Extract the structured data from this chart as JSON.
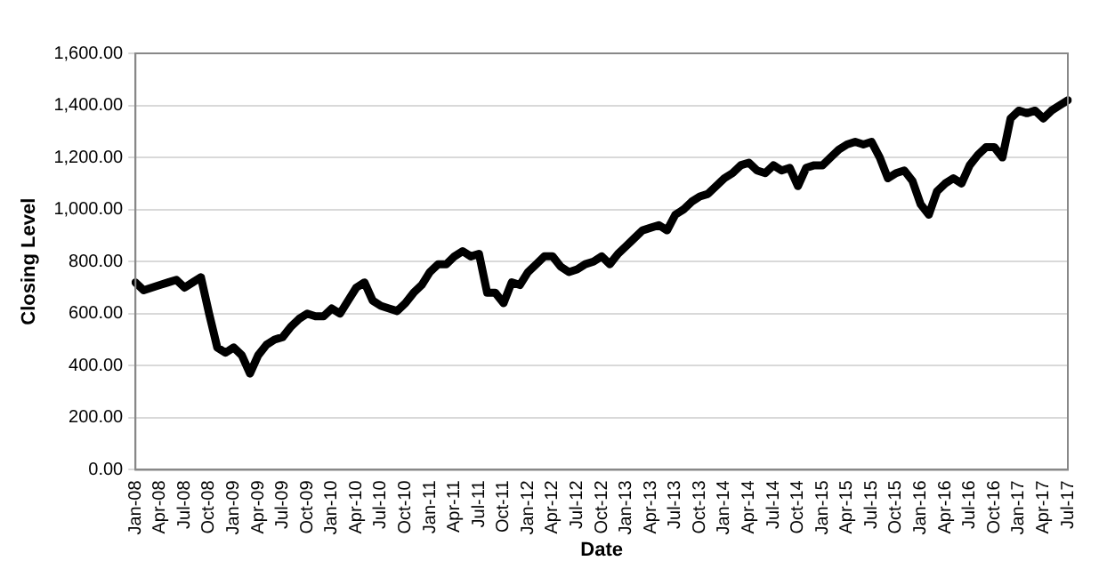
{
  "chart_data": {
    "type": "line",
    "xlabel": "Date",
    "ylabel": "Closing Level",
    "categories": [
      "Jan-08",
      null,
      null,
      "Apr-08",
      null,
      null,
      "Jul-08",
      null,
      null,
      "Oct-08",
      null,
      null,
      "Jan-09",
      null,
      null,
      "Apr-09",
      null,
      null,
      "Jul-09",
      null,
      null,
      "Oct-09",
      null,
      null,
      "Jan-10",
      null,
      null,
      "Apr-10",
      null,
      null,
      "Jul-10",
      null,
      null,
      "Oct-10",
      null,
      null,
      "Jan-11",
      null,
      null,
      "Apr-11",
      null,
      null,
      "Jul-11",
      null,
      null,
      "Oct-11",
      null,
      null,
      "Jan-12",
      null,
      null,
      "Apr-12",
      null,
      null,
      "Jul-12",
      null,
      null,
      "Oct-12",
      null,
      null,
      "Jan-13",
      null,
      null,
      "Apr-13",
      null,
      null,
      "Jul-13",
      null,
      null,
      "Oct-13",
      null,
      null,
      "Jan-14",
      null,
      null,
      "Apr-14",
      null,
      null,
      "Jul-14",
      null,
      null,
      "Oct-14",
      null,
      null,
      "Jan-15",
      null,
      null,
      "Apr-15",
      null,
      null,
      "Jul-15",
      null,
      null,
      "Oct-15",
      null,
      null,
      "Jan-16",
      null,
      null,
      "Apr-16",
      null,
      null,
      "Jul-16",
      null,
      null,
      "Oct-16",
      null,
      null,
      "Jan-17",
      null,
      null,
      "Apr-17",
      null,
      null,
      "Jul-17"
    ],
    "series": [
      {
        "color": "#000000",
        "values": [
          720,
          690,
          700,
          710,
          720,
          730,
          700,
          720,
          740,
          600,
          470,
          450,
          470,
          440,
          370,
          440,
          480,
          500,
          510,
          550,
          580,
          600,
          590,
          590,
          620,
          600,
          650,
          700,
          720,
          650,
          630,
          620,
          610,
          640,
          680,
          710,
          760,
          790,
          790,
          820,
          840,
          820,
          830,
          680,
          680,
          640,
          720,
          710,
          760,
          790,
          820,
          820,
          780,
          760,
          770,
          790,
          800,
          820,
          790,
          830,
          860,
          890,
          920,
          930,
          940,
          920,
          980,
          1000,
          1030,
          1050,
          1060,
          1090,
          1120,
          1140,
          1170,
          1180,
          1150,
          1140,
          1170,
          1150,
          1160,
          1090,
          1160,
          1170,
          1170,
          1200,
          1230,
          1250,
          1260,
          1250,
          1260,
          1200,
          1120,
          1140,
          1150,
          1110,
          1020,
          980,
          1070,
          1100,
          1120,
          1100,
          1170,
          1210,
          1240,
          1240,
          1200,
          1350,
          1380,
          1370,
          1380,
          1350,
          1380,
          1400,
          1420
        ]
      }
    ],
    "ylim": [
      0,
      1600
    ],
    "yticks": [
      {
        "value": 0,
        "label": "0.00"
      },
      {
        "value": 200,
        "label": "200.00"
      },
      {
        "value": 400,
        "label": "400.00"
      },
      {
        "value": 600,
        "label": "600.00"
      },
      {
        "value": 800,
        "label": "800.00"
      },
      {
        "value": 1000,
        "label": "1,000.00"
      },
      {
        "value": 1200,
        "label": "1,200.00"
      },
      {
        "value": 1400,
        "label": "1,400.00"
      },
      {
        "value": 1600,
        "label": "1,600.00"
      }
    ],
    "grid": "y",
    "legend": false,
    "marker": "none",
    "line_style": "solid"
  }
}
